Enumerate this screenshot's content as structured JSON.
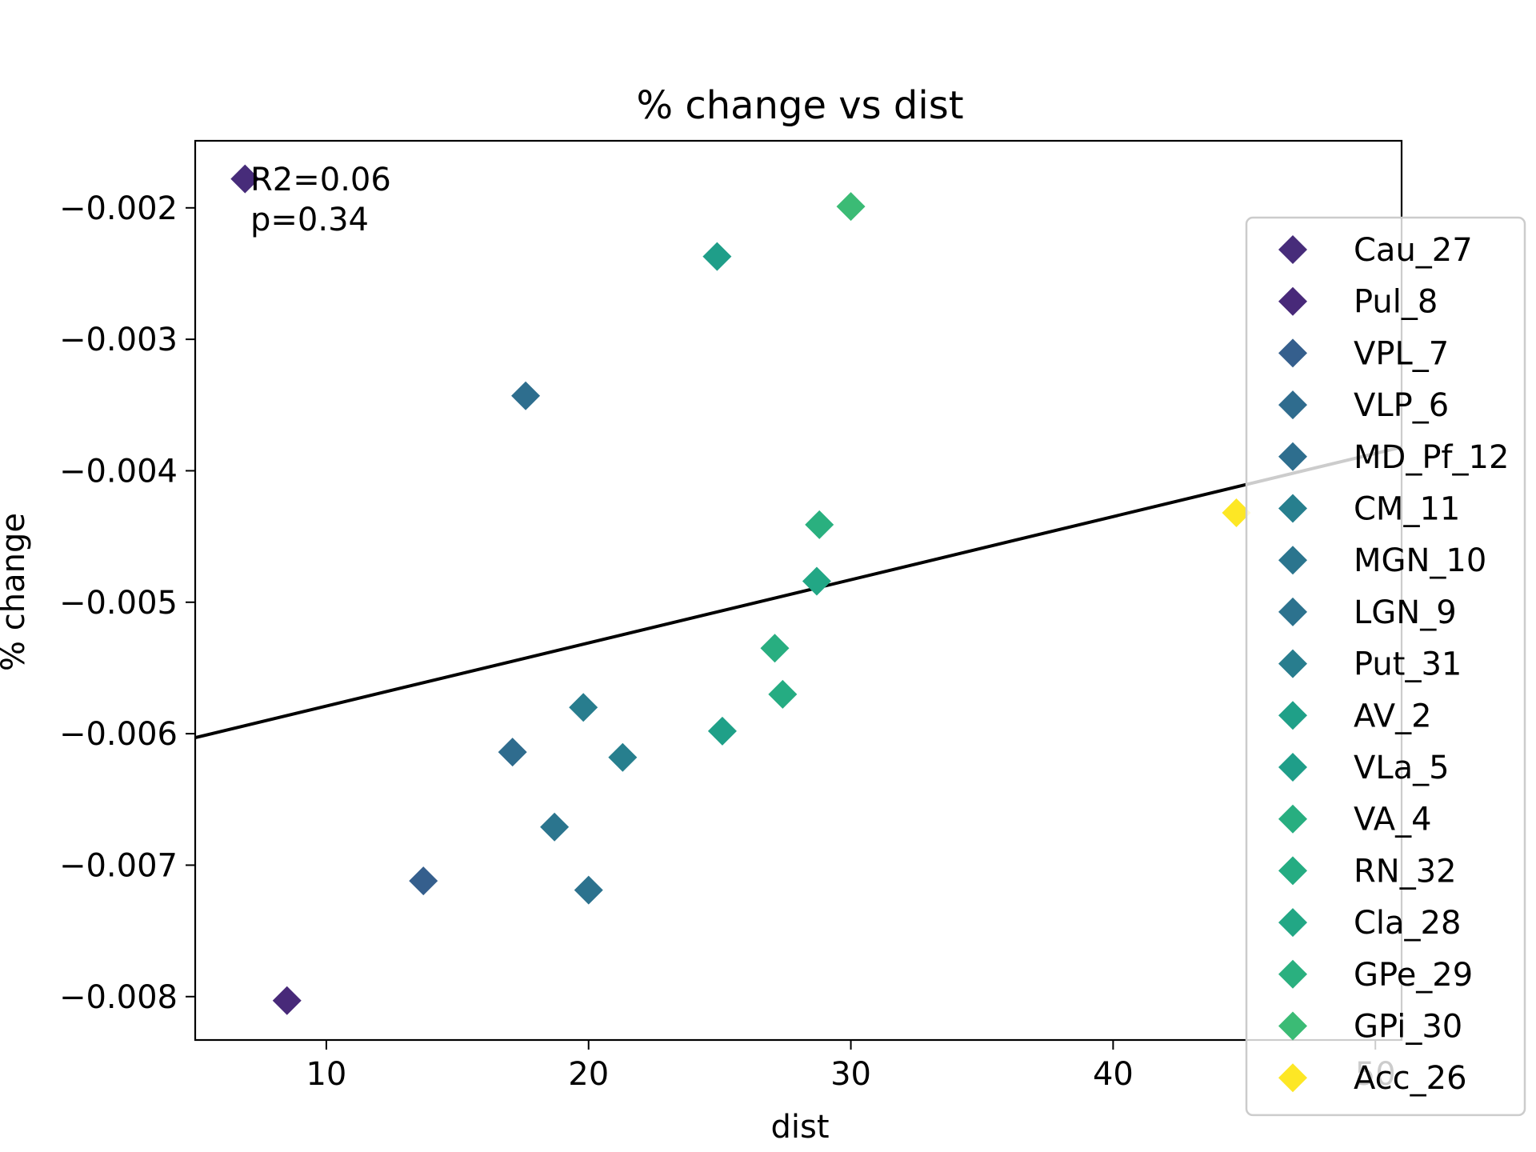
{
  "chart_data": {
    "type": "scatter",
    "title": "% change vs dist",
    "xlabel": "dist",
    "ylabel": "% change",
    "xlim": [
      5,
      51
    ],
    "ylim": [
      -0.00833,
      -0.00149
    ],
    "xticks": [
      10,
      20,
      30,
      40,
      50
    ],
    "xtick_labels": [
      "10",
      "20",
      "30",
      "40",
      "50"
    ],
    "yticks": [
      -0.008,
      -0.007,
      -0.006,
      -0.005,
      -0.004,
      -0.003,
      -0.002
    ],
    "ytick_labels": [
      "−0.008",
      "−0.007",
      "−0.006",
      "−0.005",
      "−0.004",
      "−0.003",
      "−0.002"
    ],
    "grid": false,
    "legend_position": "right",
    "annotations": [
      "R2=0.06",
      "p=0.34"
    ],
    "fit_line": {
      "x": [
        5,
        51
      ],
      "y": [
        -0.00603,
        -0.00382
      ],
      "color": "#000000"
    },
    "series": [
      {
        "name": "Cau_27",
        "color": "#472c7a",
        "points": [
          [
            6.9,
            -0.00178
          ]
        ]
      },
      {
        "name": "Pul_8",
        "color": "#482979",
        "points": [
          [
            8.5,
            -0.00803
          ]
        ]
      },
      {
        "name": "VPL_7",
        "color": "#355f8d",
        "points": [
          [
            13.7,
            -0.00712
          ]
        ]
      },
      {
        "name": "VLP_6",
        "color": "#2f6c8e",
        "points": [
          [
            17.1,
            -0.00614
          ]
        ]
      },
      {
        "name": "MD_Pf_12",
        "color": "#2e6e8e",
        "points": [
          [
            17.6,
            -0.00343
          ]
        ]
      },
      {
        "name": "CM_11",
        "color": "#277f8e",
        "points": [
          [
            21.3,
            -0.00618
          ]
        ]
      },
      {
        "name": "MGN_10",
        "color": "#2b758e",
        "points": [
          [
            18.7,
            -0.00671
          ]
        ]
      },
      {
        "name": "LGN_9",
        "color": "#2c728e",
        "points": [
          [
            20.0,
            -0.00719
          ]
        ]
      },
      {
        "name": "Put_31",
        "color": "#287d8e",
        "points": [
          [
            19.8,
            -0.0058
          ]
        ]
      },
      {
        "name": "AV_2",
        "color": "#1fa088",
        "points": [
          [
            25.1,
            -0.00598
          ]
        ]
      },
      {
        "name": "VLa_5",
        "color": "#1f9e89",
        "points": [
          [
            24.9,
            -0.00237
          ]
        ]
      },
      {
        "name": "VA_4",
        "color": "#28ae80",
        "points": [
          [
            27.1,
            -0.00535
          ]
        ]
      },
      {
        "name": "RN_32",
        "color": "#25ac82",
        "points": [
          [
            27.4,
            -0.0057
          ]
        ]
      },
      {
        "name": "Cla_28",
        "color": "#22a785",
        "points": [
          [
            28.7,
            -0.00484
          ]
        ]
      },
      {
        "name": "GPe_29",
        "color": "#2ab07f",
        "points": [
          [
            28.8,
            -0.00441
          ]
        ]
      },
      {
        "name": "GPi_30",
        "color": "#3bbb75",
        "points": [
          [
            30.0,
            -0.00199
          ]
        ]
      },
      {
        "name": "Acc_26",
        "color": "#fde725",
        "points": [
          [
            44.7,
            -0.00432
          ]
        ]
      }
    ]
  }
}
